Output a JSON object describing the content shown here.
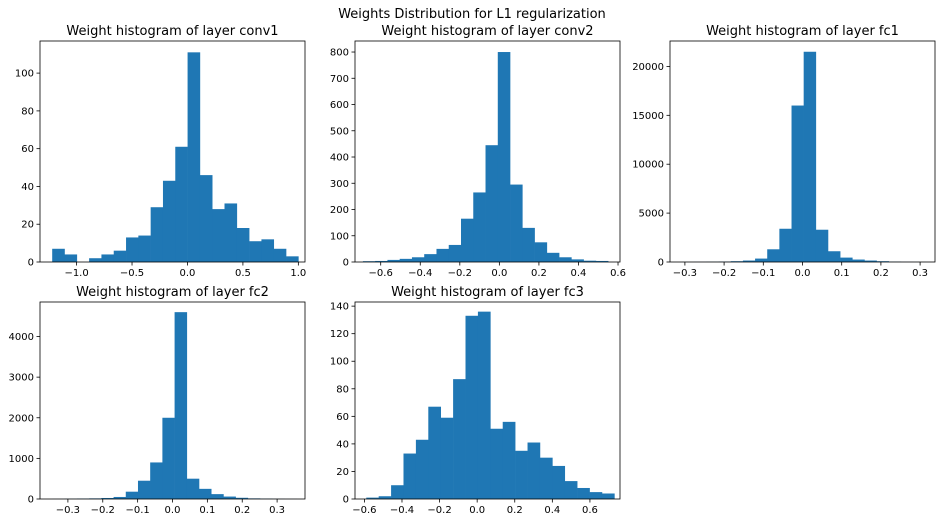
{
  "figure": {
    "suptitle": "Weights Distribution for L1 regularization"
  },
  "colors": {
    "bar": "#1f77b4",
    "axis": "#000000",
    "background": "#ffffff"
  },
  "chart_data": [
    {
      "type": "bar",
      "title": "Weight histogram of layer conv1",
      "xlabel": "",
      "ylabel": "",
      "xlim": [
        -1.33,
        1.06
      ],
      "ylim": [
        0,
        117
      ],
      "xticks": [
        -1.0,
        -0.5,
        0.0,
        0.5,
        1.0
      ],
      "xtick_labels": [
        "−1.0",
        "−0.5",
        "0.0",
        "0.5",
        "1.0"
      ],
      "yticks": [
        0,
        20,
        40,
        60,
        80,
        100
      ],
      "ytick_labels": [
        "0",
        "20",
        "40",
        "60",
        "80",
        "100"
      ],
      "bin_edges": [
        -1.22,
        -1.109,
        -0.998,
        -0.887,
        -0.776,
        -0.665,
        -0.554,
        -0.443,
        -0.332,
        -0.221,
        -0.11,
        0.001,
        0.112,
        0.223,
        0.334,
        0.445,
        0.556,
        0.667,
        0.778,
        0.889,
        1.0
      ],
      "counts": [
        7,
        4,
        0,
        2,
        4,
        6,
        13,
        14,
        29,
        43,
        61,
        111,
        46,
        28,
        31,
        18,
        11,
        12,
        7,
        3
      ]
    },
    {
      "type": "bar",
      "title": "Weight histogram of layer conv2",
      "xlabel": "",
      "ylabel": "",
      "xlim": [
        -0.73,
        0.61
      ],
      "ylim": [
        0,
        842
      ],
      "xticks": [
        -0.6,
        -0.4,
        -0.2,
        0.0,
        0.2,
        0.4,
        0.6
      ],
      "xtick_labels": [
        "−0.6",
        "−0.4",
        "−0.2",
        "0.0",
        "0.2",
        "0.4",
        "0.6"
      ],
      "yticks": [
        0,
        100,
        200,
        300,
        400,
        500,
        600,
        700,
        800
      ],
      "ytick_labels": [
        "0",
        "100",
        "200",
        "300",
        "400",
        "500",
        "600",
        "700",
        "800"
      ],
      "bin_edges": [
        -0.69,
        -0.628,
        -0.566,
        -0.504,
        -0.442,
        -0.38,
        -0.318,
        -0.256,
        -0.194,
        -0.132,
        -0.07,
        -0.008,
        0.054,
        0.116,
        0.178,
        0.24,
        0.302,
        0.364,
        0.426,
        0.488,
        0.55
      ],
      "counts": [
        3,
        4,
        8,
        12,
        18,
        30,
        50,
        65,
        165,
        265,
        445,
        800,
        295,
        130,
        75,
        35,
        18,
        10,
        5,
        4
      ]
    },
    {
      "type": "bar",
      "title": "Weight histogram of layer fc1",
      "xlabel": "",
      "ylabel": "",
      "xlim": [
        -0.338,
        0.338
      ],
      "ylim": [
        0,
        22600
      ],
      "xticks": [
        -0.3,
        -0.2,
        -0.1,
        0.0,
        0.1,
        0.2,
        0.3
      ],
      "xtick_labels": [
        "−0.3",
        "−0.2",
        "−0.1",
        "0.0",
        "0.1",
        "0.2",
        "0.3"
      ],
      "yticks": [
        0,
        5000,
        10000,
        15000,
        20000
      ],
      "ytick_labels": [
        "0",
        "5000",
        "10000",
        "15000",
        "20000"
      ],
      "bin_edges": [
        -0.307,
        -0.276,
        -0.245,
        -0.214,
        -0.183,
        -0.152,
        -0.121,
        -0.09,
        -0.059,
        -0.028,
        0.003,
        0.034,
        0.065,
        0.096,
        0.127,
        0.158,
        0.189,
        0.22,
        0.251,
        0.282,
        0.313
      ],
      "counts": [
        5,
        10,
        20,
        40,
        80,
        150,
        350,
        1300,
        3400,
        16000,
        21500,
        3300,
        1100,
        450,
        250,
        150,
        80,
        30,
        10,
        5
      ]
    },
    {
      "type": "bar",
      "title": "Weight histogram of layer fc2",
      "xlabel": "",
      "ylabel": "",
      "xlim": [
        -0.38,
        0.38
      ],
      "ylim": [
        0,
        4850
      ],
      "xticks": [
        -0.3,
        -0.2,
        -0.1,
        0.0,
        0.1,
        0.2,
        0.3
      ],
      "xtick_labels": [
        "−0.3",
        "−0.2",
        "−0.1",
        "0.0",
        "0.1",
        "0.2",
        "0.3"
      ],
      "yticks": [
        0,
        1000,
        2000,
        3000,
        4000
      ],
      "ytick_labels": [
        "0",
        "1000",
        "2000",
        "3000",
        "4000"
      ],
      "bin_edges": [
        -0.344,
        -0.309,
        -0.274,
        -0.239,
        -0.204,
        -0.169,
        -0.134,
        -0.099,
        -0.064,
        -0.029,
        0.006,
        0.041,
        0.076,
        0.111,
        0.146,
        0.181,
        0.216,
        0.251,
        0.286,
        0.321,
        0.356
      ],
      "counts": [
        2,
        5,
        10,
        15,
        25,
        50,
        180,
        450,
        900,
        2000,
        4600,
        500,
        250,
        120,
        60,
        30,
        15,
        8,
        4,
        2
      ]
    },
    {
      "type": "bar",
      "title": "Weight histogram of layer fc3",
      "xlabel": "",
      "ylabel": "",
      "xlim": [
        -0.65,
        0.76
      ],
      "ylim": [
        0,
        143
      ],
      "xticks": [
        -0.6,
        -0.4,
        -0.2,
        0.0,
        0.2,
        0.4,
        0.6
      ],
      "xtick_labels": [
        "−0.6",
        "−0.4",
        "−0.2",
        "0.0",
        "0.2",
        "0.4",
        "0.6"
      ],
      "yticks": [
        0,
        20,
        40,
        60,
        80,
        100,
        120,
        140
      ],
      "ytick_labels": [
        "0",
        "20",
        "40",
        "60",
        "80",
        "100",
        "120",
        "140"
      ],
      "bin_edges": [
        -0.59,
        -0.524,
        -0.458,
        -0.392,
        -0.326,
        -0.26,
        -0.194,
        -0.128,
        -0.062,
        0.004,
        0.07,
        0.136,
        0.202,
        0.268,
        0.334,
        0.4,
        0.466,
        0.532,
        0.598,
        0.664,
        0.73
      ],
      "counts": [
        1,
        2,
        10,
        33,
        43,
        67,
        59,
        87,
        133,
        136,
        51,
        56,
        35,
        41,
        30,
        24,
        13,
        8,
        5,
        4
      ]
    }
  ]
}
